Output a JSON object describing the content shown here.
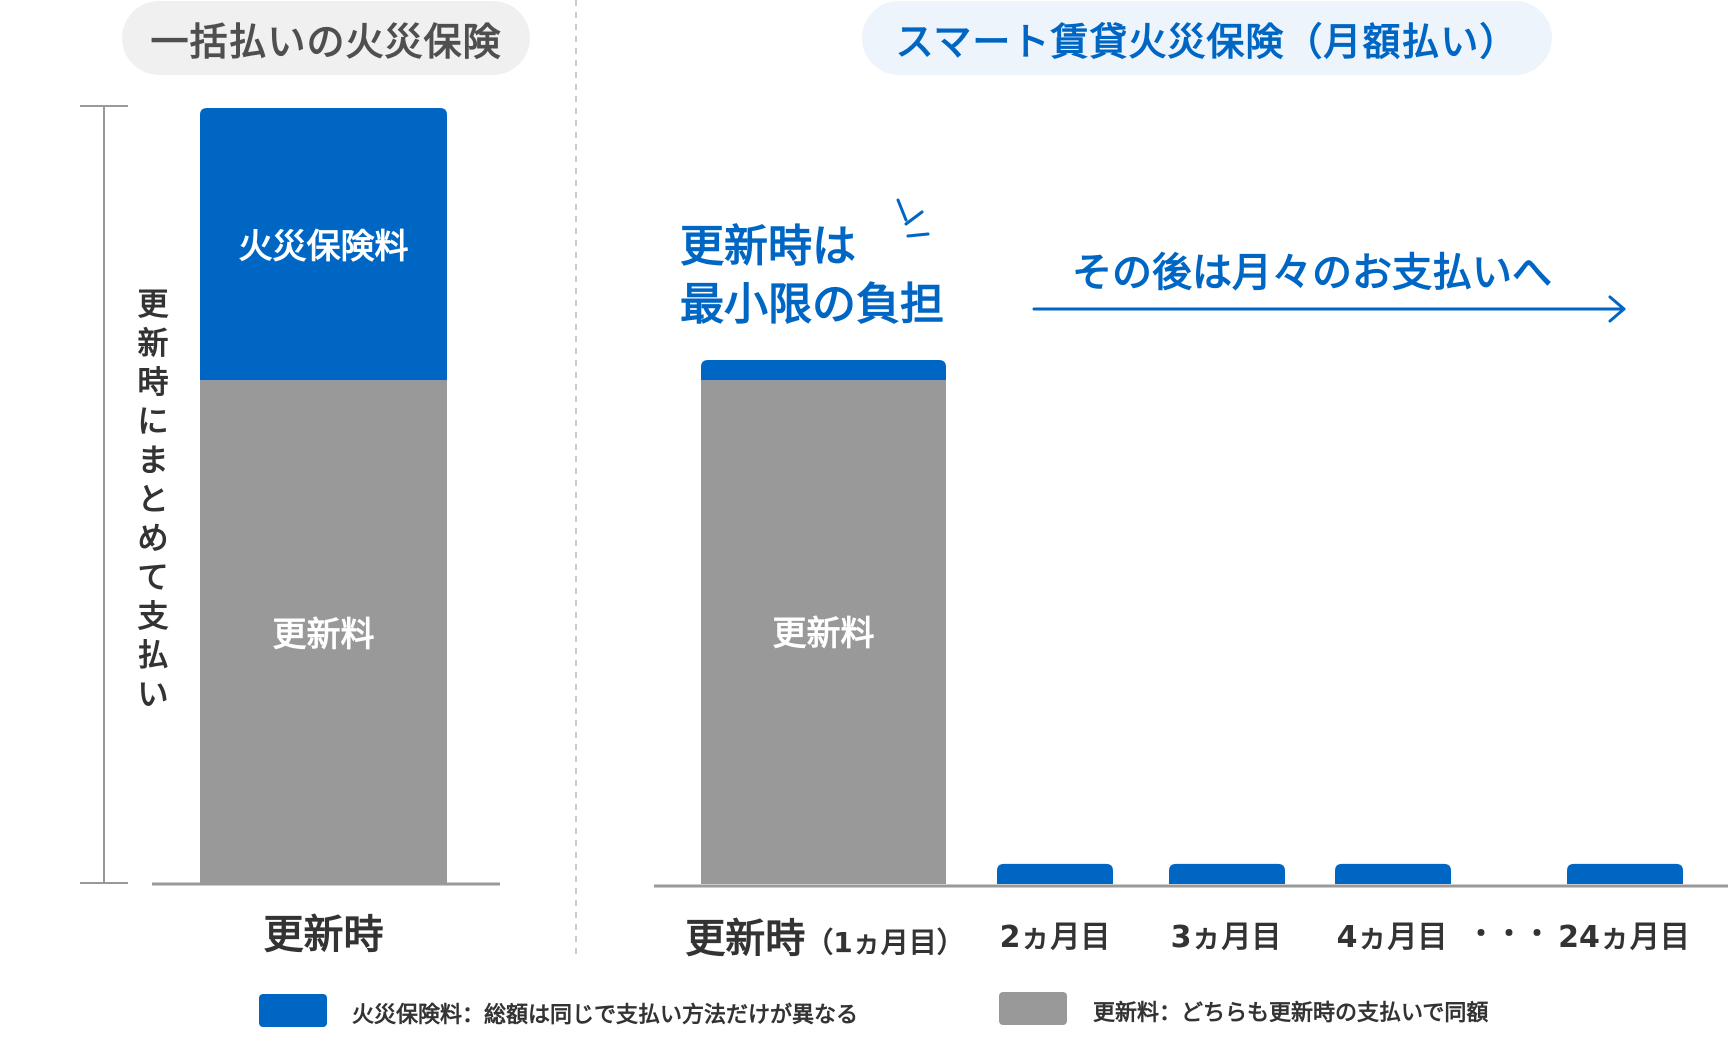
{
  "colors": {
    "fire_insurance": "#0066c4",
    "renewal_fee": "#999999",
    "axis": "#999999",
    "divider": "#cccccc"
  },
  "titles": {
    "left": "一括払いの火災保険",
    "right": "スマート賃貸火災保険（月額払い）"
  },
  "bracket_label": "更新時にまとめて支払い",
  "annotations": {
    "callout_line1": "更新時は",
    "callout_line2": "最小限の負担",
    "arrow_text": "その後は月々のお支払いへ",
    "ellipsis": "・・・"
  },
  "chart_data": [
    {
      "type": "bar",
      "stacked": true,
      "categories": [
        "更新時"
      ],
      "series": [
        {
          "name": "更新料",
          "values": [
            100
          ],
          "color": "#999999"
        },
        {
          "name": "火災保険料",
          "values": [
            54
          ],
          "color": "#0066c4"
        }
      ],
      "segment_labels": [
        "更新料",
        "火災保険料"
      ],
      "ylim": [
        0,
        154
      ]
    },
    {
      "type": "bar",
      "stacked": true,
      "categories": [
        {
          "main": "更新時",
          "sub": "（1ヵ月目）"
        },
        {
          "main": "2ヵ月目",
          "sub": ""
        },
        {
          "main": "3ヵ月目",
          "sub": ""
        },
        {
          "main": "4ヵ月目",
          "sub": ""
        },
        {
          "main": "24ヵ月目",
          "sub": ""
        }
      ],
      "series": [
        {
          "name": "更新料",
          "values": [
            100,
            0,
            0,
            0,
            0
          ],
          "color": "#999999"
        },
        {
          "name": "火災保険料",
          "values": [
            4,
            4,
            4,
            4,
            4
          ],
          "color": "#0066c4"
        }
      ],
      "segment_labels": [
        "更新料"
      ],
      "ylim": [
        0,
        154
      ]
    }
  ],
  "legend": [
    {
      "color": "#0066c4",
      "label": "火災保険料：総額は同じで支払い方法だけが異なる"
    },
    {
      "color": "#999999",
      "label": "更新料：どちらも更新時の支払いで同額"
    }
  ]
}
